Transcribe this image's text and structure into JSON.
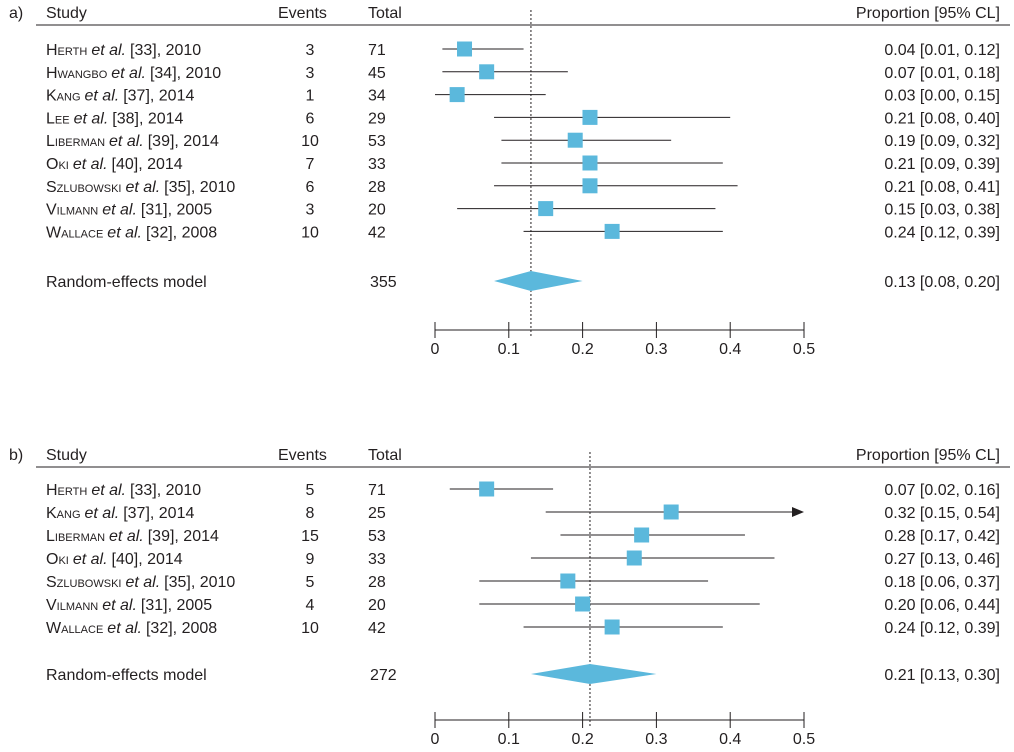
{
  "chart_data": [
    {
      "type": "forest",
      "panel_label": "a)",
      "columns": {
        "study": "Study",
        "events": "Events",
        "total": "Total",
        "proportion": "Proportion [95% CL]"
      },
      "studies": [
        {
          "name": "Herth",
          "etal": "et al.",
          "ref": "[33], 2010",
          "events": "3",
          "total": "71",
          "est": 0.04,
          "lo": 0.01,
          "hi": 0.12,
          "ci_text": "0.04 [0.01, 0.12]"
        },
        {
          "name": "Hwangbo",
          "etal": "et al.",
          "ref": "[34], 2010",
          "events": "3",
          "total": "45",
          "est": 0.07,
          "lo": 0.01,
          "hi": 0.18,
          "ci_text": "0.07 [0.01, 0.18]"
        },
        {
          "name": "Kang",
          "etal": "et al.",
          "ref": "[37], 2014",
          "events": "1",
          "total": "34",
          "est": 0.03,
          "lo": 0.0,
          "hi": 0.15,
          "ci_text": "0.03 [0.00, 0.15]"
        },
        {
          "name": "Lee",
          "etal": "et al.",
          "ref": "[38], 2014",
          "events": "6",
          "total": "29",
          "est": 0.21,
          "lo": 0.08,
          "hi": 0.4,
          "ci_text": "0.21 [0.08, 0.40]"
        },
        {
          "name": "Liberman",
          "etal": "et al.",
          "ref": "[39], 2014",
          "events": "10",
          "total": "53",
          "est": 0.19,
          "lo": 0.09,
          "hi": 0.32,
          "ci_text": "0.19 [0.09, 0.32]"
        },
        {
          "name": "Oki",
          "etal": "et al.",
          "ref": "[40], 2014",
          "events": "7",
          "total": "33",
          "est": 0.21,
          "lo": 0.09,
          "hi": 0.39,
          "ci_text": "0.21 [0.09, 0.39]"
        },
        {
          "name": "Szlubowski",
          "etal": "et al.",
          "ref": "[35], 2010",
          "events": "6",
          "total": "28",
          "est": 0.21,
          "lo": 0.08,
          "hi": 0.41,
          "ci_text": "0.21 [0.08, 0.41]"
        },
        {
          "name": "Vilmann",
          "etal": "et al.",
          "ref": "[31], 2005",
          "events": "3",
          "total": "20",
          "est": 0.15,
          "lo": 0.03,
          "hi": 0.38,
          "ci_text": "0.15 [0.03, 0.38]"
        },
        {
          "name": "Wallace",
          "etal": "et al.",
          "ref": "[32], 2008",
          "events": "10",
          "total": "42",
          "est": 0.24,
          "lo": 0.12,
          "hi": 0.39,
          "ci_text": "0.24 [0.12, 0.39]"
        }
      ],
      "summary": {
        "label": "Random-effects model",
        "total": "355",
        "est": 0.13,
        "lo": 0.08,
        "hi": 0.2,
        "ci_text": "0.13 [0.08, 0.20]"
      },
      "x_ticks": [
        "0",
        "0.1",
        "0.2",
        "0.3",
        "0.4",
        "0.5"
      ],
      "xlim": [
        0,
        0.5
      ],
      "reference_line": 0.13,
      "marker_color": "#5bb8dc"
    },
    {
      "type": "forest",
      "panel_label": "b)",
      "columns": {
        "study": "Study",
        "events": "Events",
        "total": "Total",
        "proportion": "Proportion [95% CL]"
      },
      "studies": [
        {
          "name": "Herth",
          "etal": "et al.",
          "ref": "[33], 2010",
          "events": "5",
          "total": "71",
          "est": 0.07,
          "lo": 0.02,
          "hi": 0.16,
          "ci_text": "0.07 [0.02, 0.16]"
        },
        {
          "name": "Kang",
          "etal": "et al.",
          "ref": "[37], 2014",
          "events": "8",
          "total": "25",
          "est": 0.32,
          "lo": 0.15,
          "hi": 0.54,
          "ci_text": "0.32 [0.15, 0.54]"
        },
        {
          "name": "Liberman",
          "etal": "et al.",
          "ref": "[39], 2014",
          "events": "15",
          "total": "53",
          "est": 0.28,
          "lo": 0.17,
          "hi": 0.42,
          "ci_text": "0.28 [0.17, 0.42]"
        },
        {
          "name": "Oki",
          "etal": "et al.",
          "ref": "[40], 2014",
          "events": "9",
          "total": "33",
          "est": 0.27,
          "lo": 0.13,
          "hi": 0.46,
          "ci_text": "0.27 [0.13, 0.46]"
        },
        {
          "name": "Szlubowski",
          "etal": "et al.",
          "ref": "[35], 2010",
          "events": "5",
          "total": "28",
          "est": 0.18,
          "lo": 0.06,
          "hi": 0.37,
          "ci_text": "0.18 [0.06, 0.37]"
        },
        {
          "name": "Vilmann",
          "etal": "et al.",
          "ref": "[31], 2005",
          "events": "4",
          "total": "20",
          "est": 0.2,
          "lo": 0.06,
          "hi": 0.44,
          "ci_text": "0.20 [0.06, 0.44]"
        },
        {
          "name": "Wallace",
          "etal": "et al.",
          "ref": "[32], 2008",
          "events": "10",
          "total": "42",
          "est": 0.24,
          "lo": 0.12,
          "hi": 0.39,
          "ci_text": "0.24 [0.12, 0.39]"
        }
      ],
      "summary": {
        "label": "Random-effects model",
        "total": "272",
        "est": 0.21,
        "lo": 0.13,
        "hi": 0.3,
        "ci_text": "0.21 [0.13, 0.30]"
      },
      "x_ticks": [
        "0",
        "0.1",
        "0.2",
        "0.3",
        "0.4",
        "0.5"
      ],
      "xlim": [
        0,
        0.5
      ],
      "reference_line": 0.21,
      "marker_color": "#5bb8dc"
    }
  ]
}
